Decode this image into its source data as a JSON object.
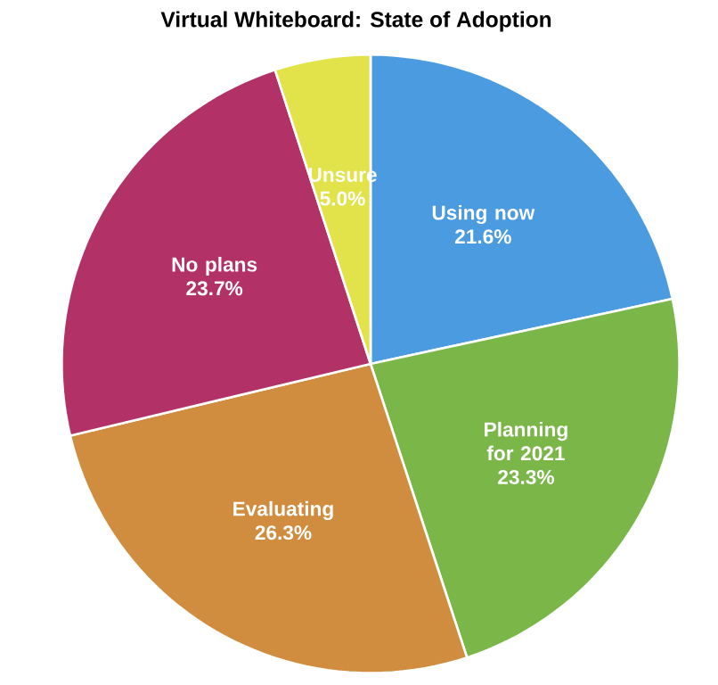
{
  "chart_data": {
    "type": "pie",
    "title": "Virtual Whiteboard: State of Adoption",
    "categories": [
      "Using now",
      "Planning for 2021",
      "Evaluating",
      "No plans",
      "Unsure"
    ],
    "values": [
      21.6,
      23.3,
      26.3,
      23.7,
      5.0
    ],
    "colors": [
      "#4a9be0",
      "#7ab648",
      "#d08c3f",
      "#b23268",
      "#e2e24a"
    ],
    "value_labels": [
      "21.6%",
      "23.3%",
      "26.3%",
      "23.7%",
      "5.0%"
    ]
  }
}
